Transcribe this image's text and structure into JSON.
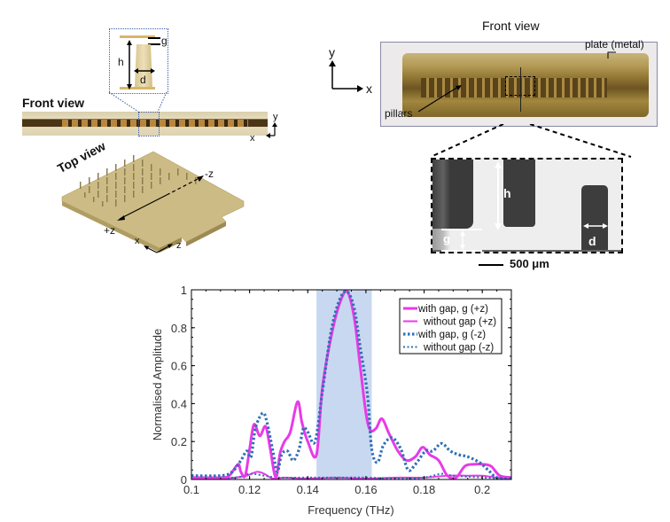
{
  "panel_a": {
    "inset_labels": {
      "g": "g",
      "h": "h",
      "d": "d"
    },
    "front_view_title": "Front view",
    "front_axes": {
      "x": "x",
      "y": "y"
    },
    "top_view_title": "Top view",
    "top_labels": {
      "minus_z": "-z",
      "plus_z": "+z",
      "x": "x",
      "z": "z"
    }
  },
  "panel_b": {
    "title": "Front view",
    "axes": {
      "x": "x",
      "y": "y"
    },
    "plate_label": "plate (metal)",
    "pillars_label": "pillars",
    "micro_labels": {
      "h": "h",
      "g": "g",
      "d": "d"
    },
    "scale_bar": "500 μm"
  },
  "colors": {
    "magenta": "#e83ae8",
    "blue": "#2f6fb6",
    "band": "#c8d8f0",
    "gold": "#c8ae62"
  },
  "chart_data": {
    "type": "line",
    "title": "",
    "xlabel": "Frequency (THz)",
    "ylabel": "Normalised Amplitude",
    "xlim": [
      0.1,
      0.21
    ],
    "ylim": [
      0,
      1
    ],
    "xticks": [
      "0.1",
      "0.12",
      "0.14",
      "0.16",
      "0.18",
      "0.2"
    ],
    "yticks": [
      "0",
      "0.2",
      "0.4",
      "0.6",
      "0.8",
      "1"
    ],
    "grid": false,
    "legend_position": "upper right",
    "shaded_band": [
      0.143,
      0.162
    ],
    "series": [
      {
        "name": "with gap, g (+z)",
        "style": "solid-thick",
        "color": "#e83ae8",
        "x": [
          0.1,
          0.11,
          0.113,
          0.116,
          0.117,
          0.1185,
          0.12,
          0.1215,
          0.1235,
          0.1255,
          0.127,
          0.129,
          0.1305,
          0.132,
          0.134,
          0.1365,
          0.138,
          0.14,
          0.143,
          0.145,
          0.148,
          0.151,
          0.1536,
          0.156,
          0.158,
          0.16,
          0.1615,
          0.1635,
          0.1655,
          0.168,
          0.171,
          0.174,
          0.177,
          0.1795,
          0.182,
          0.185,
          0.188,
          0.191,
          0.194,
          0.197,
          0.2,
          0.203,
          0.206,
          0.21
        ],
        "y": [
          0.01,
          0.01,
          0.02,
          0.08,
          0.04,
          0.02,
          0.16,
          0.29,
          0.23,
          0.28,
          0.17,
          0.01,
          0.14,
          0.2,
          0.25,
          0.41,
          0.3,
          0.2,
          0.13,
          0.48,
          0.75,
          0.93,
          0.99,
          0.85,
          0.6,
          0.35,
          0.26,
          0.27,
          0.32,
          0.24,
          0.15,
          0.1,
          0.12,
          0.17,
          0.13,
          0.1,
          0.02,
          0.01,
          0.07,
          0.08,
          0.08,
          0.07,
          0.02,
          0.01
        ]
      },
      {
        "name": "without gap (+z)",
        "style": "solid-thin",
        "color": "#e83ae8",
        "x": [
          0.1,
          0.11,
          0.115,
          0.119,
          0.1225,
          0.125,
          0.128,
          0.132,
          0.14,
          0.15,
          0.16,
          0.17,
          0.18,
          0.188,
          0.195,
          0.2,
          0.205,
          0.21
        ],
        "y": [
          0.005,
          0.005,
          0.01,
          0.02,
          0.04,
          0.03,
          0.005,
          0.01,
          0.005,
          0.01,
          0.005,
          0.01,
          0.01,
          0.02,
          0.02,
          0.02,
          0.01,
          0.005
        ]
      },
      {
        "name": "with gap, g (-z)",
        "style": "dotted-thick",
        "color": "#2f6fb6",
        "x": [
          0.1,
          0.11,
          0.114,
          0.117,
          0.119,
          0.1205,
          0.122,
          0.1245,
          0.126,
          0.128,
          0.1295,
          0.131,
          0.133,
          0.135,
          0.137,
          0.1385,
          0.14,
          0.1425,
          0.145,
          0.148,
          0.151,
          0.1536,
          0.156,
          0.158,
          0.1605,
          0.162,
          0.164,
          0.166,
          0.169,
          0.172,
          0.1745,
          0.177,
          0.1805,
          0.183,
          0.186,
          0.189,
          0.192,
          0.195,
          0.199,
          0.202,
          0.205,
          0.21
        ],
        "y": [
          0.02,
          0.02,
          0.04,
          0.1,
          0.15,
          0.12,
          0.27,
          0.35,
          0.3,
          0.15,
          0.04,
          0.13,
          0.15,
          0.1,
          0.16,
          0.27,
          0.25,
          0.2,
          0.46,
          0.78,
          0.95,
          0.99,
          0.9,
          0.7,
          0.45,
          0.16,
          0.09,
          0.18,
          0.22,
          0.16,
          0.05,
          0.08,
          0.15,
          0.15,
          0.19,
          0.15,
          0.13,
          0.12,
          0.09,
          0.05,
          0.01,
          0.005
        ]
      },
      {
        "name": "without gap (-z)",
        "style": "dotted-thin",
        "color": "#2f6fb6",
        "x": [
          0.1,
          0.115,
          0.12,
          0.125,
          0.13,
          0.14,
          0.15,
          0.16,
          0.17,
          0.18,
          0.186,
          0.19,
          0.2,
          0.21
        ],
        "y": [
          0.01,
          0.01,
          0.03,
          0.02,
          0.01,
          0.01,
          0.01,
          0.01,
          0.005,
          0.01,
          0.03,
          0.02,
          0.01,
          0.005
        ]
      }
    ]
  }
}
